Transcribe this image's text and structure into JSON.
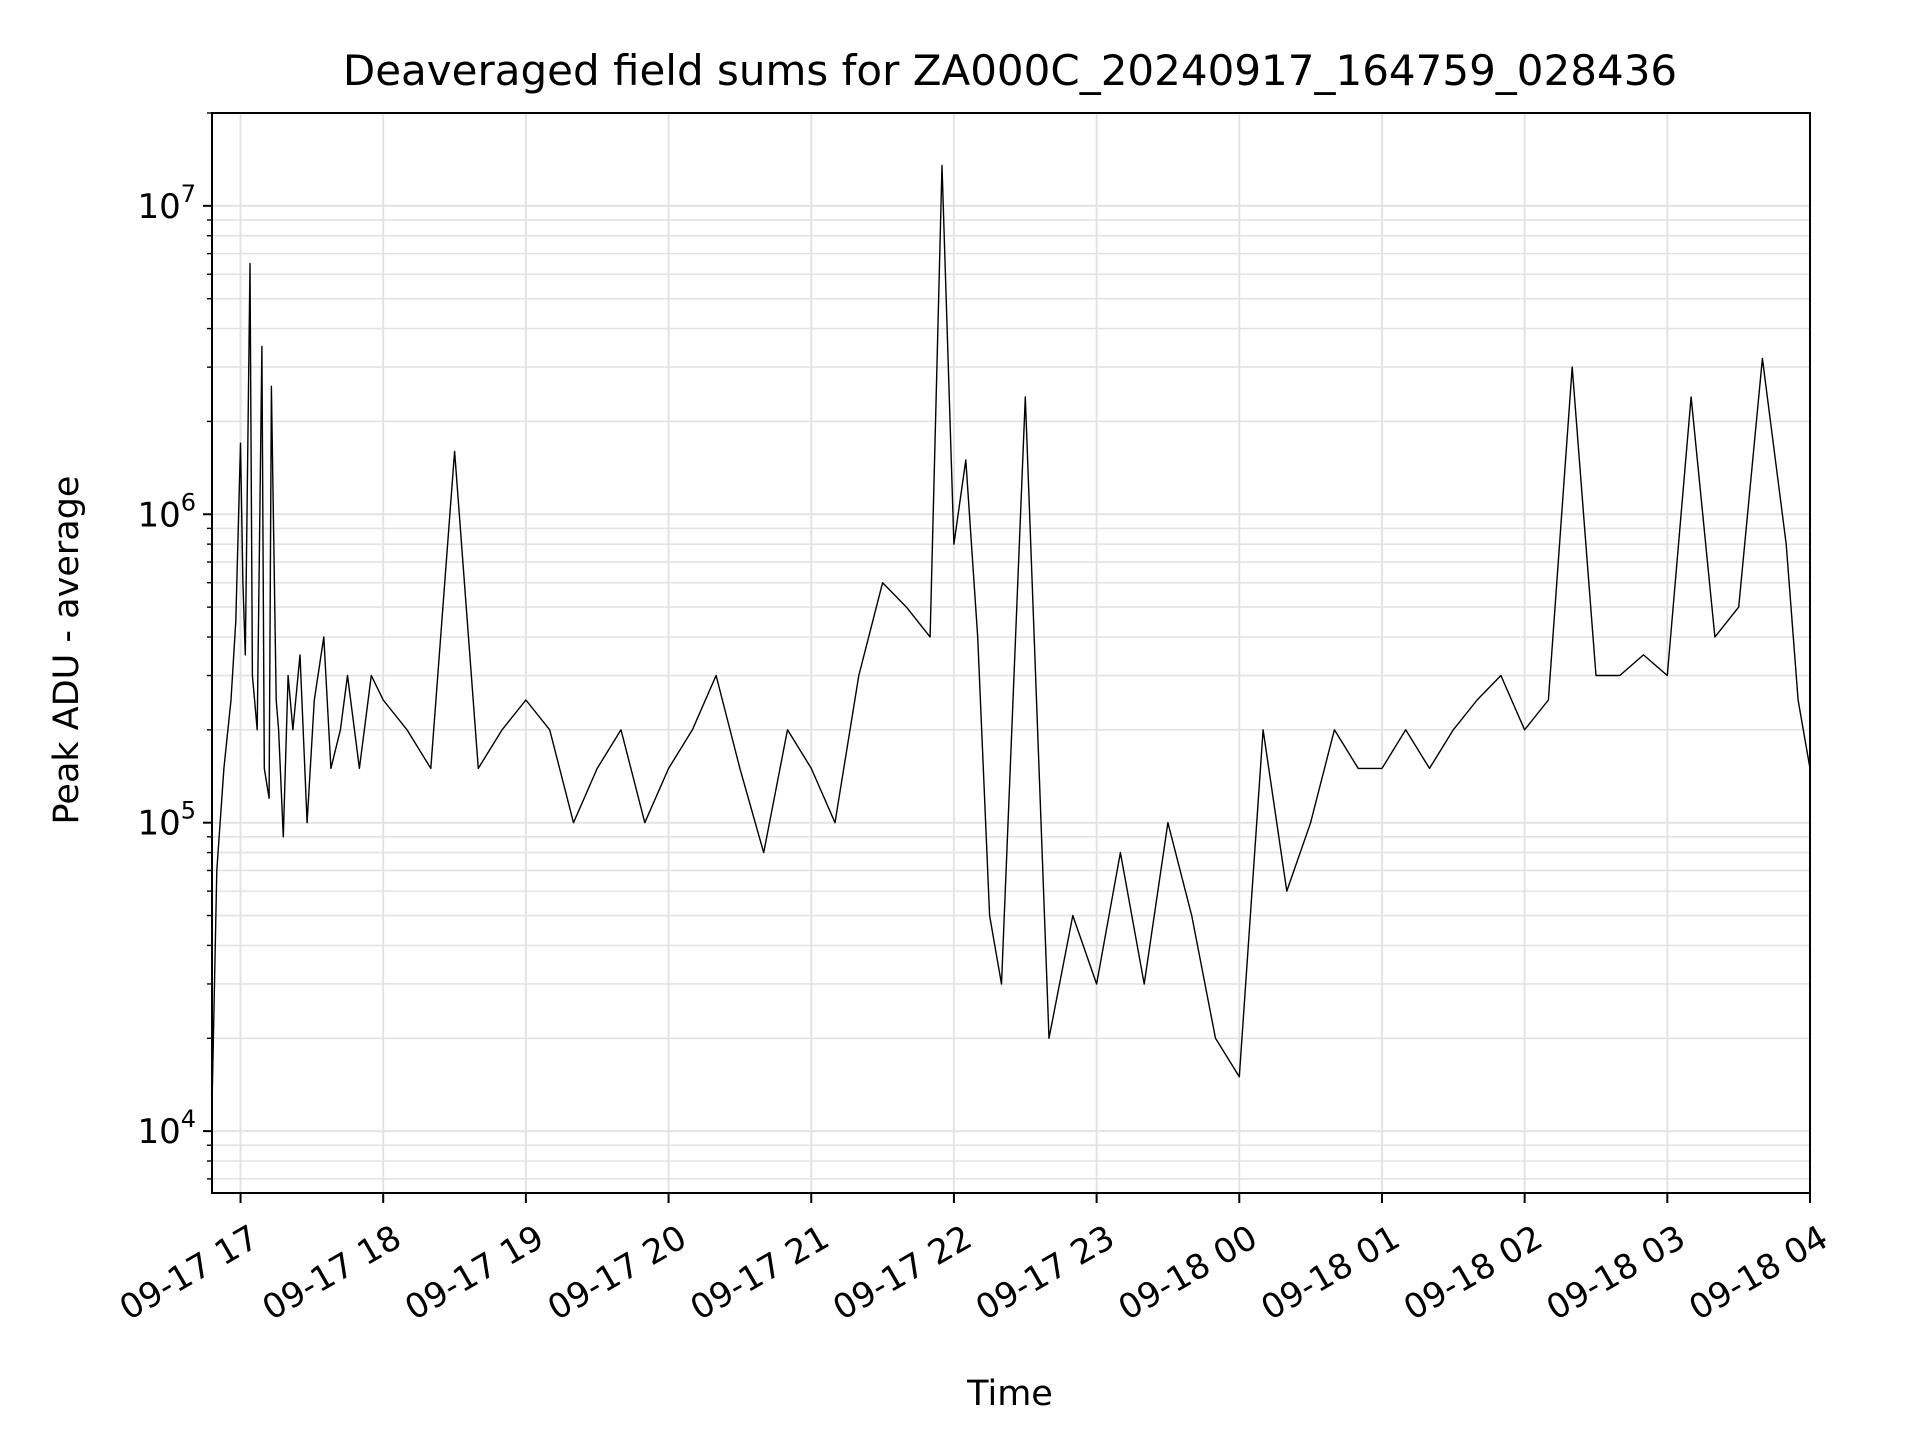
{
  "chart_data": {
    "type": "line",
    "title": "Deaveraged field sums for ZA000C_20240917_164759_028436",
    "xlabel": "Time",
    "ylabel": "Peak ADU - average",
    "yscale": "log",
    "ylim": [
      6300,
      20000000
    ],
    "xlim": [
      "2024-09-17 16:48",
      "2024-09-18 04:00"
    ],
    "grid": true,
    "line_color": "#000000",
    "grid_color": "#e3e3e3",
    "x_ticks": [
      {
        "value": "2024-09-17 17:00",
        "label": "09-17 17"
      },
      {
        "value": "2024-09-17 18:00",
        "label": "09-17 18"
      },
      {
        "value": "2024-09-17 19:00",
        "label": "09-17 19"
      },
      {
        "value": "2024-09-17 20:00",
        "label": "09-17 20"
      },
      {
        "value": "2024-09-17 21:00",
        "label": "09-17 21"
      },
      {
        "value": "2024-09-17 22:00",
        "label": "09-17 22"
      },
      {
        "value": "2024-09-17 23:00",
        "label": "09-17 23"
      },
      {
        "value": "2024-09-18 00:00",
        "label": "09-18 00"
      },
      {
        "value": "2024-09-18 01:00",
        "label": "09-18 01"
      },
      {
        "value": "2024-09-18 02:00",
        "label": "09-18 02"
      },
      {
        "value": "2024-09-18 03:00",
        "label": "09-18 03"
      },
      {
        "value": "2024-09-18 04:00",
        "label": "09-18 04"
      }
    ],
    "y_ticks": [
      {
        "value": 10000,
        "base": "10",
        "exp": "4"
      },
      {
        "value": 100000,
        "base": "10",
        "exp": "5"
      },
      {
        "value": 1000000,
        "base": "10",
        "exp": "6"
      },
      {
        "value": 10000000,
        "base": "10",
        "exp": "7"
      }
    ],
    "series": [
      {
        "x": [
          "2024-09-17 16:48",
          "2024-09-17 16:50",
          "2024-09-17 16:53",
          "2024-09-17 16:56",
          "2024-09-17 16:58",
          "2024-09-17 17:00",
          "2024-09-17 17:01",
          "2024-09-17 17:02",
          "2024-09-17 17:04",
          "2024-09-17 17:05",
          "2024-09-17 17:07",
          "2024-09-17 17:09",
          "2024-09-17 17:10",
          "2024-09-17 17:12",
          "2024-09-17 17:13",
          "2024-09-17 17:15",
          "2024-09-17 17:16",
          "2024-09-17 17:18",
          "2024-09-17 17:20",
          "2024-09-17 17:22",
          "2024-09-17 17:25",
          "2024-09-17 17:28",
          "2024-09-17 17:31",
          "2024-09-17 17:35",
          "2024-09-17 17:38",
          "2024-09-17 17:42",
          "2024-09-17 17:45",
          "2024-09-17 17:50",
          "2024-09-17 17:55",
          "2024-09-17 18:00",
          "2024-09-17 18:10",
          "2024-09-17 18:20",
          "2024-09-17 18:30",
          "2024-09-17 18:40",
          "2024-09-17 18:50",
          "2024-09-17 19:00",
          "2024-09-17 19:10",
          "2024-09-17 19:20",
          "2024-09-17 19:30",
          "2024-09-17 19:40",
          "2024-09-17 19:50",
          "2024-09-17 20:00",
          "2024-09-17 20:10",
          "2024-09-17 20:20",
          "2024-09-17 20:30",
          "2024-09-17 20:40",
          "2024-09-17 20:50",
          "2024-09-17 21:00",
          "2024-09-17 21:10",
          "2024-09-17 21:20",
          "2024-09-17 21:30",
          "2024-09-17 21:40",
          "2024-09-17 21:50",
          "2024-09-17 21:55",
          "2024-09-17 22:00",
          "2024-09-17 22:05",
          "2024-09-17 22:10",
          "2024-09-17 22:15",
          "2024-09-17 22:20",
          "2024-09-17 22:30",
          "2024-09-17 22:40",
          "2024-09-17 22:50",
          "2024-09-17 23:00",
          "2024-09-17 23:10",
          "2024-09-17 23:20",
          "2024-09-17 23:30",
          "2024-09-17 23:40",
          "2024-09-17 23:50",
          "2024-09-18 00:00",
          "2024-09-18 00:10",
          "2024-09-18 00:20",
          "2024-09-18 00:30",
          "2024-09-18 00:40",
          "2024-09-18 00:50",
          "2024-09-18 01:00",
          "2024-09-18 01:10",
          "2024-09-18 01:20",
          "2024-09-18 01:30",
          "2024-09-18 01:40",
          "2024-09-18 01:50",
          "2024-09-18 02:00",
          "2024-09-18 02:10",
          "2024-09-18 02:20",
          "2024-09-18 02:30",
          "2024-09-18 02:40",
          "2024-09-18 02:50",
          "2024-09-18 03:00",
          "2024-09-18 03:10",
          "2024-09-18 03:20",
          "2024-09-18 03:30",
          "2024-09-18 03:40",
          "2024-09-18 03:50",
          "2024-09-18 03:55",
          "2024-09-18 04:00"
        ],
        "y": [
          12000,
          70000,
          150000,
          250000,
          450000,
          1700000,
          600000,
          350000,
          6500000,
          300000,
          200000,
          3500000,
          150000,
          120000,
          2600000,
          250000,
          200000,
          90000,
          300000,
          200000,
          350000,
          100000,
          250000,
          400000,
          150000,
          200000,
          300000,
          150000,
          300000,
          250000,
          200000,
          150000,
          1600000,
          150000,
          200000,
          250000,
          200000,
          100000,
          150000,
          200000,
          100000,
          150000,
          200000,
          300000,
          150000,
          80000,
          200000,
          150000,
          100000,
          300000,
          600000,
          500000,
          400000,
          13500000,
          800000,
          1500000,
          400000,
          50000,
          30000,
          2400000,
          20000,
          50000,
          30000,
          80000,
          30000,
          100000,
          50000,
          20000,
          15000,
          200000,
          60000,
          100000,
          200000,
          150000,
          150000,
          200000,
          150000,
          200000,
          250000,
          300000,
          200000,
          250000,
          3000000,
          300000,
          300000,
          350000,
          300000,
          2400000,
          400000,
          500000,
          3200000,
          800000,
          250000,
          150000
        ]
      }
    ]
  }
}
